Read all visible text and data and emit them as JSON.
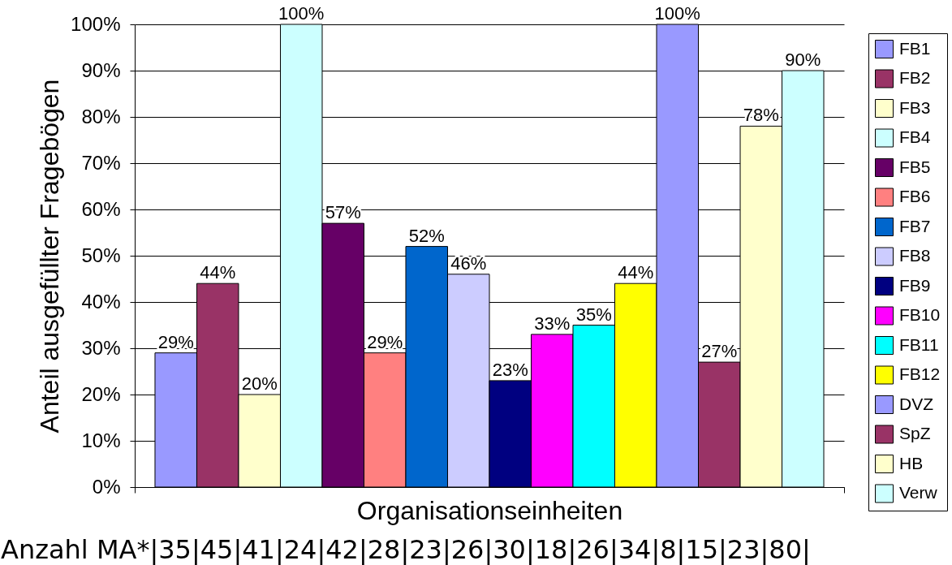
{
  "chart_data": {
    "type": "bar",
    "xlabel": "Organisationseinheiten",
    "ylabel": "Anteil ausgefüllter Fragebögen",
    "categories": [
      null
    ],
    "series": [
      {
        "name": "FB1",
        "color": "#9999ff",
        "values": [
          29
        ],
        "value_labels": [
          "29%"
        ]
      },
      {
        "name": "FB2",
        "color": "#993366",
        "values": [
          44
        ],
        "value_labels": [
          "44%"
        ]
      },
      {
        "name": "FB3",
        "color": "#ffffcc",
        "values": [
          20
        ],
        "value_labels": [
          "20%"
        ]
      },
      {
        "name": "FB4",
        "color": "#ccffff",
        "values": [
          100
        ],
        "value_labels": [
          "100%"
        ]
      },
      {
        "name": "FB5",
        "color": "#660066",
        "values": [
          57
        ],
        "value_labels": [
          "57%"
        ]
      },
      {
        "name": "FB6",
        "color": "#ff8080",
        "values": [
          29
        ],
        "value_labels": [
          "29%"
        ]
      },
      {
        "name": "FB7",
        "color": "#0066cc",
        "values": [
          52
        ],
        "value_labels": [
          "52%"
        ]
      },
      {
        "name": "FB8",
        "color": "#ccccff",
        "values": [
          46
        ],
        "value_labels": [
          "46%"
        ]
      },
      {
        "name": "FB9",
        "color": "#000080",
        "values": [
          23
        ],
        "value_labels": [
          "23%"
        ]
      },
      {
        "name": "FB10",
        "color": "#ff00ff",
        "values": [
          33
        ],
        "value_labels": [
          "33%"
        ]
      },
      {
        "name": "FB11",
        "color": "#00ffff",
        "values": [
          35
        ],
        "value_labels": [
          "35%"
        ]
      },
      {
        "name": "FB12",
        "color": "#ffff00",
        "values": [
          44
        ],
        "value_labels": [
          "44%"
        ]
      },
      {
        "name": "DVZ",
        "color": "#9999ff",
        "values": [
          100
        ],
        "value_labels": [
          "100%"
        ]
      },
      {
        "name": "SpZ",
        "color": "#993366",
        "values": [
          27
        ],
        "value_labels": [
          "27%"
        ]
      },
      {
        "name": "HB",
        "color": "#ffffcc",
        "values": [
          78
        ],
        "value_labels": [
          "78%"
        ]
      },
      {
        "name": "Verw",
        "color": "#ccffff",
        "values": [
          90
        ],
        "value_labels": [
          "90%"
        ]
      }
    ],
    "ylim": [
      0,
      100
    ],
    "yticks": [
      {
        "value": 0,
        "label": "0%"
      },
      {
        "value": 10,
        "label": "10%"
      },
      {
        "value": 20,
        "label": "20%"
      },
      {
        "value": 30,
        "label": "30%"
      },
      {
        "value": 40,
        "label": "40%"
      },
      {
        "value": 50,
        "label": "50%"
      },
      {
        "value": 60,
        "label": "60%"
      },
      {
        "value": 70,
        "label": "70%"
      },
      {
        "value": 80,
        "label": "80%"
      },
      {
        "value": 90,
        "label": "90%"
      },
      {
        "value": 100,
        "label": "100%"
      }
    ],
    "grid": "y",
    "legend": "right",
    "annotations": [
      "Anzahl MA*|35|45|41|24|42|28|23|26|30|18|26|34|8|15|23|80|"
    ]
  }
}
